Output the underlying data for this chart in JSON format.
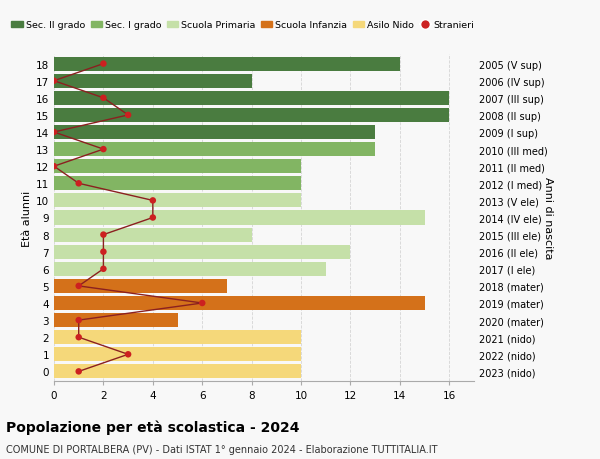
{
  "ages": [
    18,
    17,
    16,
    15,
    14,
    13,
    12,
    11,
    10,
    9,
    8,
    7,
    6,
    5,
    4,
    3,
    2,
    1,
    0
  ],
  "years": [
    "2005 (V sup)",
    "2006 (IV sup)",
    "2007 (III sup)",
    "2008 (II sup)",
    "2009 (I sup)",
    "2010 (III med)",
    "2011 (II med)",
    "2012 (I med)",
    "2013 (V ele)",
    "2014 (IV ele)",
    "2015 (III ele)",
    "2016 (II ele)",
    "2017 (I ele)",
    "2018 (mater)",
    "2019 (mater)",
    "2020 (mater)",
    "2021 (nido)",
    "2022 (nido)",
    "2023 (nido)"
  ],
  "bar_values": [
    14,
    8,
    16,
    16,
    13,
    13,
    10,
    10,
    10,
    15,
    8,
    12,
    11,
    7,
    15,
    5,
    10,
    10,
    10
  ],
  "bar_colors": [
    "#4a7c40",
    "#4a7c40",
    "#4a7c40",
    "#4a7c40",
    "#4a7c40",
    "#82b563",
    "#82b563",
    "#82b563",
    "#c5e0a8",
    "#c5e0a8",
    "#c5e0a8",
    "#c5e0a8",
    "#c5e0a8",
    "#d4711a",
    "#d4711a",
    "#d4711a",
    "#f5d87a",
    "#f5d87a",
    "#f5d87a"
  ],
  "stranieri_values": [
    2,
    0,
    2,
    3,
    0,
    2,
    0,
    1,
    4,
    4,
    2,
    2,
    2,
    1,
    6,
    1,
    1,
    3,
    1
  ],
  "xlim": [
    0,
    17
  ],
  "ylabel": "Età alunni",
  "right_label": "Anni di nascita",
  "title": "Popolazione per età scolastica - 2024",
  "subtitle": "COMUNE DI PORTALBERA (PV) - Dati ISTAT 1° gennaio 2024 - Elaborazione TUTTITALIA.IT",
  "legend_labels": [
    "Sec. II grado",
    "Sec. I grado",
    "Scuola Primaria",
    "Scuola Infanzia",
    "Asilo Nido",
    "Stranieri"
  ],
  "legend_colors": [
    "#4a7c40",
    "#82b563",
    "#c5e0a8",
    "#d4711a",
    "#f5d87a",
    "#cc2222"
  ],
  "bg_color": "#f8f8f8",
  "grid_color": "#cccccc"
}
